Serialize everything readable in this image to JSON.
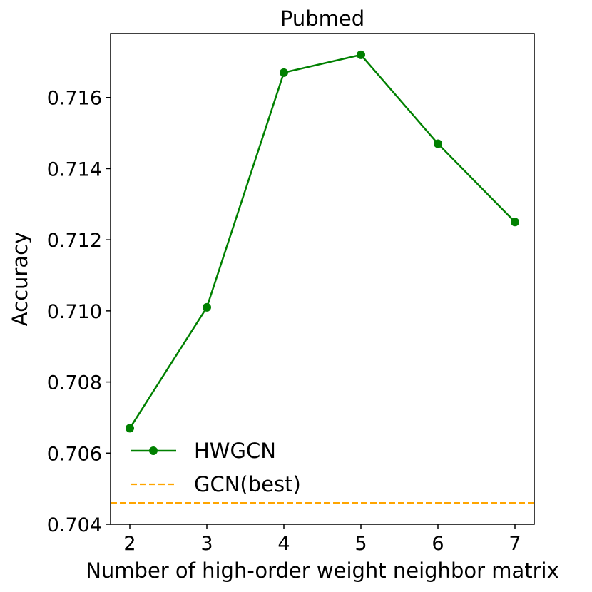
{
  "chart_data": {
    "type": "line",
    "title": "Pubmed",
    "xlabel": "Number of high-order weight neighbor matrix",
    "ylabel": "Accuracy",
    "x": [
      2,
      3,
      4,
      5,
      6,
      7
    ],
    "xlim": [
      1.75,
      7.25
    ],
    "ylim": [
      0.704,
      0.7178
    ],
    "yticks": [
      "0.704",
      "0.706",
      "0.708",
      "0.710",
      "0.712",
      "0.714",
      "0.716"
    ],
    "xticks": [
      "2",
      "3",
      "4",
      "5",
      "6",
      "7"
    ],
    "grid": false,
    "legend": "lower-left",
    "series": [
      {
        "name": "HWGCN",
        "values": [
          0.7067,
          0.7101,
          0.7167,
          0.7172,
          0.7147,
          0.7125
        ],
        "color": "#008000",
        "style": "solid",
        "marker": "circle"
      }
    ],
    "reference_lines": [
      {
        "name": "GCN(best)",
        "y": 0.7046,
        "color": "#FFA500",
        "style": "dashed"
      }
    ]
  }
}
